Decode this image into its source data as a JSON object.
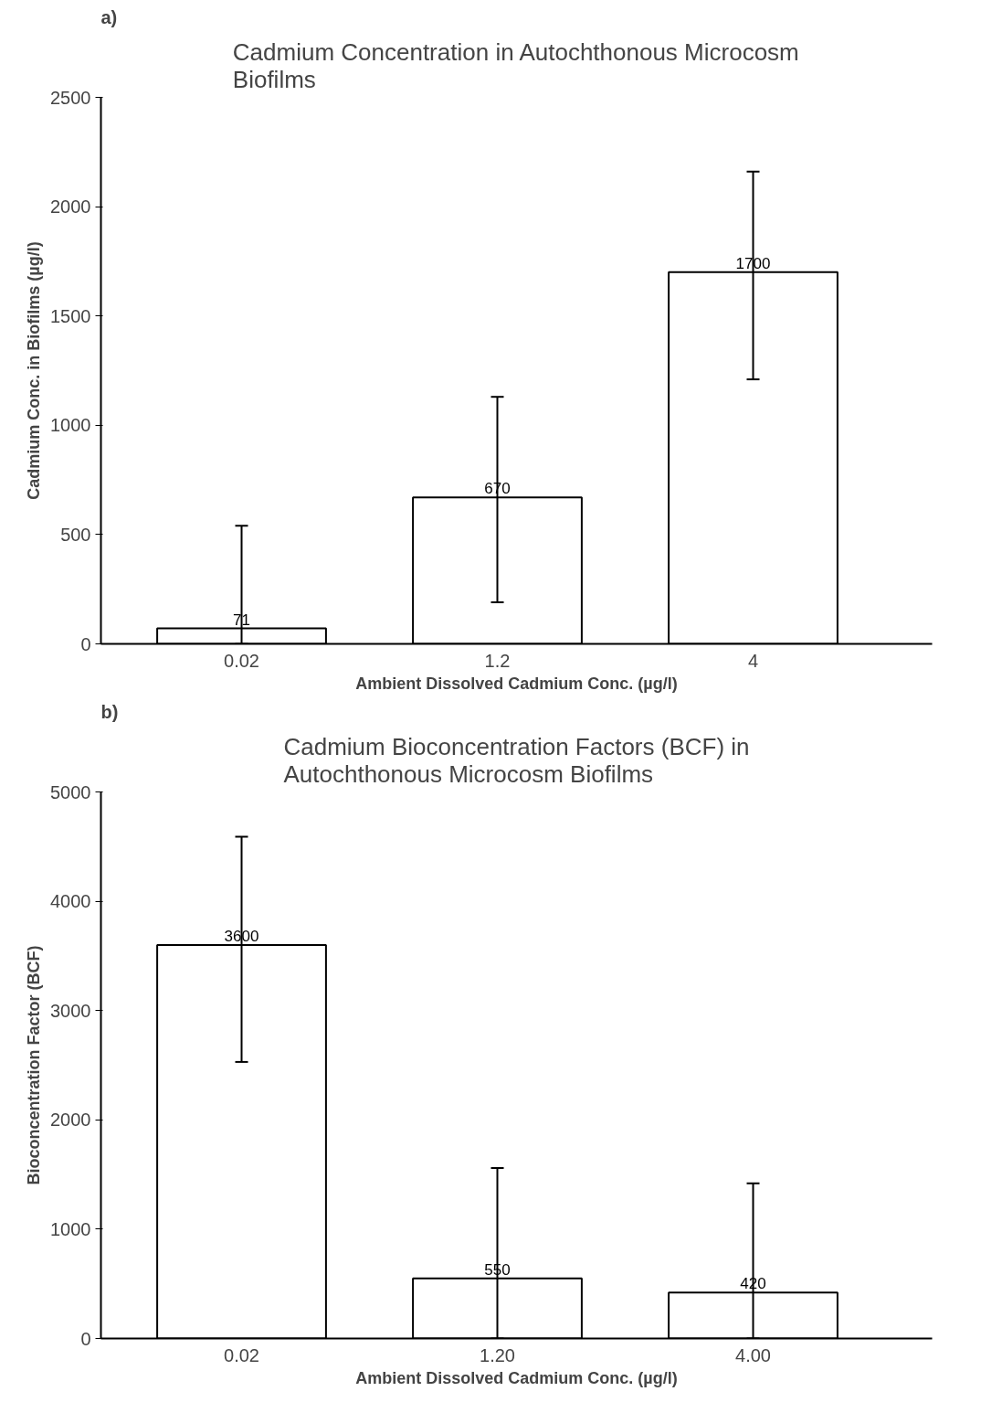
{
  "chart_data": [
    {
      "type": "bar",
      "title": "Cadmium Concentration in Autochthonous Microcosm Biofilms",
      "xlabel": "Ambient Dissolved Cadmium Conc. (µg/l)",
      "ylabel": "Cadmium Conc. in Biofilms (µg/l)",
      "annotations": [
        "a)"
      ],
      "categories": [
        "0.02",
        "1.2",
        "4"
      ],
      "values": [
        71,
        670,
        1700
      ],
      "errors": [
        [
          0,
          540
        ],
        [
          190,
          1130
        ],
        [
          1210,
          2160
        ]
      ],
      "color": "#ffffff",
      "ylim": [
        0,
        2500
      ],
      "yticks": [
        0,
        500,
        1000,
        1500,
        2000,
        2500
      ],
      "data_labels": true,
      "grid": false
    },
    {
      "type": "bar",
      "title": "Cadmium Bioconcentration Factors (BCF) in Autochthonous Microcosm Biofilms",
      "xlabel": "Ambient Dissolved Cadmium Conc. (µg/l)",
      "ylabel": "Bioconcentration Factor (BCF)",
      "annotations": [
        "b)"
      ],
      "categories": [
        "0.02",
        "1.20",
        "4.00"
      ],
      "values": [
        3600,
        550,
        420
      ],
      "errors": [
        [
          2530,
          4590
        ],
        [
          0,
          1560
        ],
        [
          0,
          1420
        ]
      ],
      "color": "#ffffff",
      "ylim": [
        0,
        5000
      ],
      "yticks": [
        0,
        1000,
        2000,
        3000,
        4000,
        5000
      ],
      "data_labels": true,
      "grid": false
    }
  ]
}
